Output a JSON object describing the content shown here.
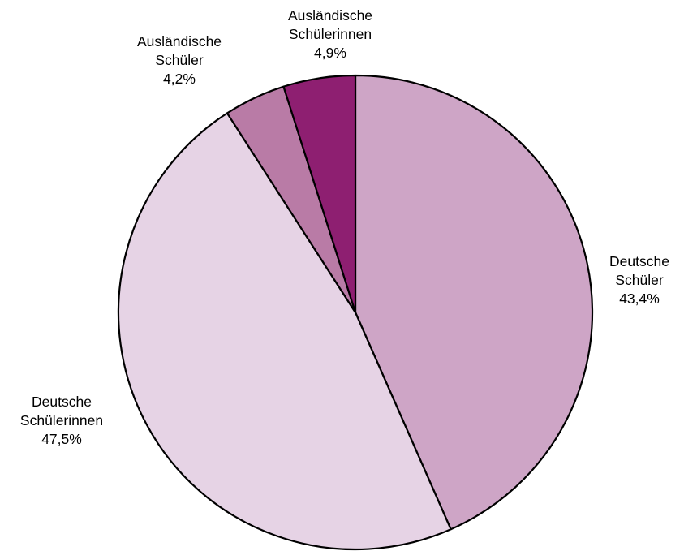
{
  "chart_data": {
    "type": "pie",
    "start_angle_deg": 0,
    "direction": "clockwise",
    "legend": "none",
    "slices": [
      {
        "label": [
          "Deutsche",
          "Schüler"
        ],
        "value": 43.4,
        "value_text": "43,4%",
        "color": "#CEA5C6"
      },
      {
        "label": [
          "Deutsche",
          "Schülerinnen"
        ],
        "value": 47.5,
        "value_text": "47,5%",
        "color": "#E6D3E5"
      },
      {
        "label": [
          "Ausländische",
          "Schüler"
        ],
        "value": 4.2,
        "value_text": "4,2%",
        "color": "#B97BA6"
      },
      {
        "label": [
          "Ausländische",
          "Schülerinnen"
        ],
        "value": 4.9,
        "value_text": "4,9%",
        "color": "#8E1F71"
      }
    ]
  }
}
